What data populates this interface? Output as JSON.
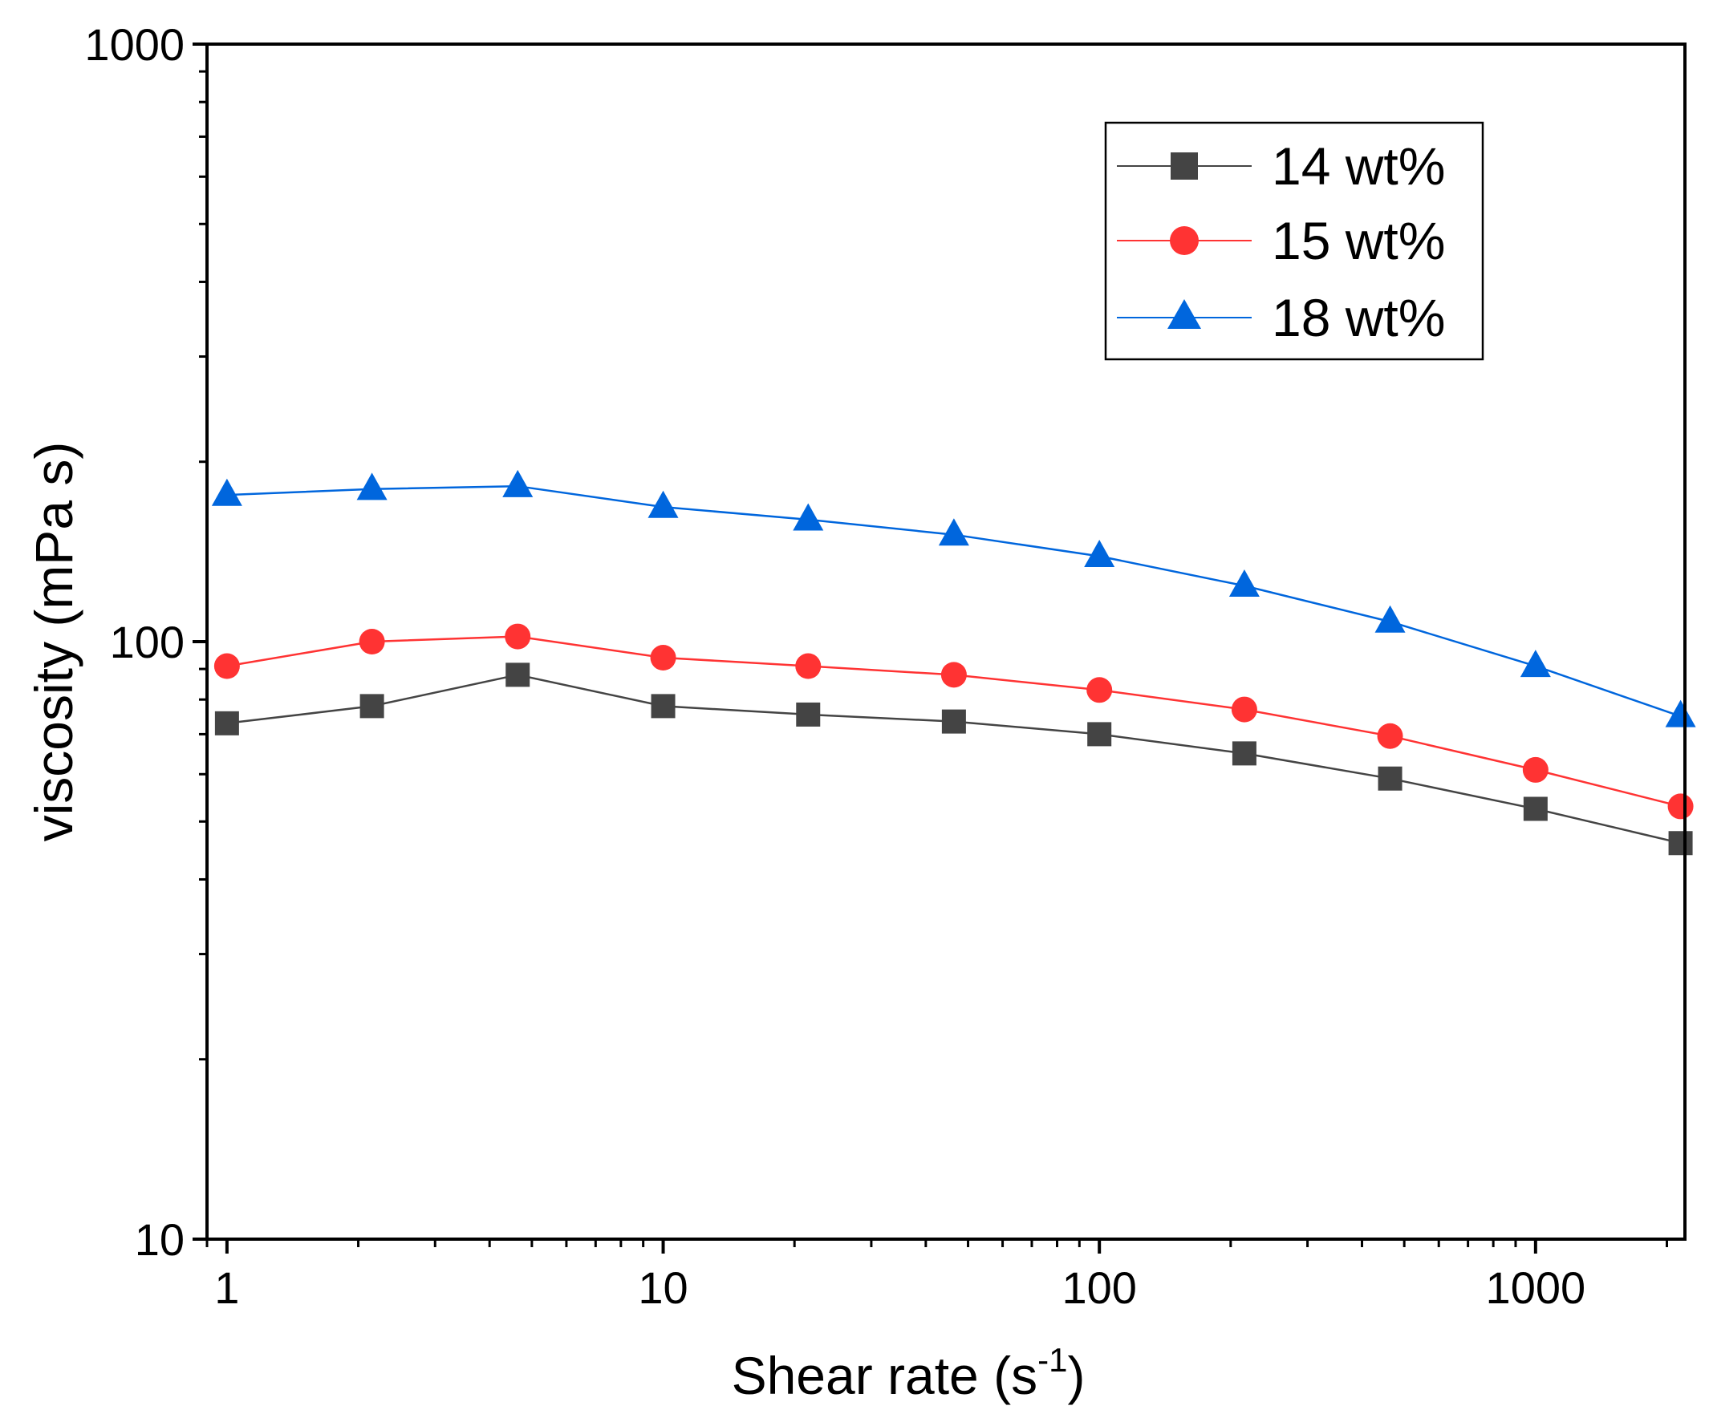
{
  "chart_data": {
    "type": "line",
    "title": "",
    "xlabel": {
      "base": "Shear rate (s",
      "sup": "-1",
      "tail": ")"
    },
    "ylabel": "viscosity (mPa s)",
    "x_scale": "log",
    "y_scale": "log",
    "xlim": [
      0.9,
      2200
    ],
    "ylim": [
      10,
      1000
    ],
    "x_ticks": [
      {
        "value": 1,
        "label": "1"
      },
      {
        "value": 10,
        "label": "10"
      },
      {
        "value": 100,
        "label": "100"
      },
      {
        "value": 1000,
        "label": "1000"
      }
    ],
    "y_ticks": [
      {
        "value": 10,
        "label": "10"
      },
      {
        "value": 100,
        "label": "100"
      },
      {
        "value": 1000,
        "label": "1000"
      }
    ],
    "grid": false,
    "legend_position": "top-right",
    "x": [
      1,
      2.15,
      4.64,
      10,
      21.5,
      46.4,
      100,
      215,
      464,
      1000,
      2150
    ],
    "series": [
      {
        "name": "14 wt%",
        "color": "#444444",
        "marker": "square",
        "values": [
          73,
          78,
          88,
          78,
          75.5,
          73.5,
          70,
          65,
          59,
          52.5,
          46
        ]
      },
      {
        "name": "15 wt%",
        "color": "#ff3333",
        "marker": "circle",
        "values": [
          91,
          100,
          102,
          94,
          91,
          88,
          83,
          77,
          69.5,
          61,
          53
        ]
      },
      {
        "name": "18 wt%",
        "color": "#0066dd",
        "marker": "triangle",
        "values": [
          176,
          180,
          182,
          168,
          160,
          151,
          139,
          124,
          108,
          91,
          75
        ]
      }
    ]
  }
}
